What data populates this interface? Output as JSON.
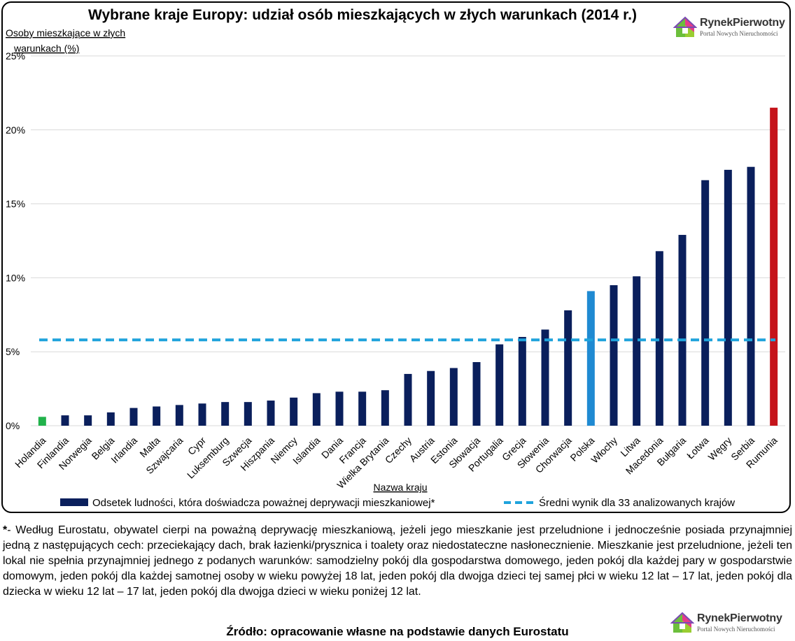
{
  "chart_data": {
    "type": "bar",
    "title": "Wybrane kraje Europy: udział osób mieszkających w złych warunkach (2014 r.)",
    "ylabel": "Osoby mieszkające w złych warunkach (%)",
    "xlabel": "Nazwa kraju",
    "ylim": [
      0,
      25
    ],
    "yticks": [
      "0%",
      "5%",
      "10%",
      "15%",
      "20%",
      "25%"
    ],
    "grid": true,
    "legend_position": "bottom",
    "categories": [
      "Holandia",
      "Finlandia",
      "Norwegia",
      "Belgia",
      "Irlandia",
      "Malta",
      "Szwajcaria",
      "Cypr",
      "Luksemburg",
      "Szwecja",
      "Hiszpania",
      "Niemcy",
      "Islandia",
      "Dania",
      "Francja",
      "Wielka Brytania",
      "Czechy",
      "Austria",
      "Estonia",
      "Słowacja",
      "Portugalia",
      "Grecja",
      "Słowenia",
      "Chorwacja",
      "Polska",
      "Włochy",
      "Litwa",
      "Macedonia",
      "Bułgaria",
      "Łotwa",
      "Węgry",
      "Serbia",
      "Rumunia"
    ],
    "series": [
      {
        "name": "Odsetek ludności, która doświadcza poważnej deprywacji mieszkaniowej*",
        "values": [
          0.6,
          0.7,
          0.7,
          0.9,
          1.2,
          1.3,
          1.4,
          1.5,
          1.6,
          1.6,
          1.7,
          1.9,
          2.2,
          2.3,
          2.3,
          2.4,
          3.5,
          3.7,
          3.9,
          4.3,
          5.5,
          6.0,
          6.5,
          7.8,
          9.1,
          9.5,
          10.1,
          11.8,
          12.9,
          16.6,
          17.3,
          17.5,
          21.5
        ],
        "color": "#0a1f5c"
      },
      {
        "name": "Średni wynik dla 33 analizowanych krajów",
        "type": "line",
        "value": 5.8,
        "color": "#1fa3dc"
      }
    ],
    "highlight_colors": {
      "Holandia": "#21b24b",
      "Polska": "#1f8ad2",
      "Rumunia": "#c5141b"
    }
  },
  "logo": {
    "name_a": "Rynek",
    "name_b": "Pierwotny",
    "tagline": "Portal Nowych Nieruchomości"
  },
  "footnote": {
    "marker": "*",
    "text": "- Według Eurostatu, obywatel cierpi na poważną deprywację mieszkaniową, jeżeli jego mieszkanie jest przeludnione i jednocześnie posiada przynajmniej jedną z następujących cech: przeciekający dach, brak łazienki/prysznica i toalety oraz niedostateczne nasłonecznienie. Mieszkanie jest przeludnione, jeżeli ten lokal nie spełnia przynajmniej jednego z podanych warunków: samodzielny pokój dla gospodarstwa domowego, jeden pokój dla każdej pary w gospodarstwie domowym, jeden pokój dla każdej samotnej osoby w wieku powyżej 18 lat, jeden pokój dla dwojga dzieci tej samej płci w wieku 12 lat – 17 lat, jeden pokój dla dziecka w wieku 12 lat – 17 lat, jeden pokój dla dwojga dzieci w wieku poniżej 12 lat."
  },
  "source": "Źródło: opracowanie własne na podstawie danych Eurostatu"
}
